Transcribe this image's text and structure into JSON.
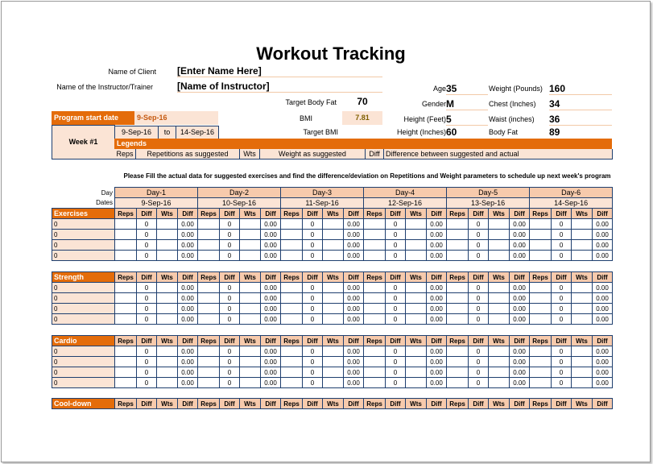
{
  "title": "Workout Tracking",
  "client": {
    "label": "Name of Client",
    "value": "[Enter Name Here]"
  },
  "instructor": {
    "label": "Name of the Instructor/Trainer",
    "value": "[Name of Instructor]"
  },
  "target_body_fat": {
    "label": "Target Body Fat",
    "value": "70"
  },
  "bmi": {
    "label": "BMI",
    "value": "7.81"
  },
  "target_bmi": {
    "label": "Target BMI",
    "value": ""
  },
  "program": {
    "label": "Program start date",
    "value": "9-Sep-16"
  },
  "week": {
    "label": "Week #1",
    "from": "9-Sep-16",
    "to_label": "to",
    "to": "14-Sep-16"
  },
  "legends": {
    "title": "Legends",
    "items": [
      {
        "key": "Reps",
        "text": "Repetitions as suggested"
      },
      {
        "key": "Wts",
        "text": "Weight as suggested"
      },
      {
        "key": "Diff",
        "text": "Difference between suggested and actual"
      }
    ]
  },
  "stats": [
    {
      "label": "Age",
      "value": "35",
      "label2": "Weight (Pounds)",
      "value2": "160"
    },
    {
      "label": "Gender",
      "value": "M",
      "label2": "Chest (Inches)",
      "value2": "34"
    },
    {
      "label": "Height (Feet)",
      "value": "5",
      "label2": "Waist (inches)",
      "value2": "36"
    },
    {
      "label": "Height (Inches)",
      "value": "60",
      "label2": "Body Fat",
      "value2": "89"
    }
  ],
  "instruction": "Please Fill the actual data for suggested exercises and find the difference/deviation on Repetitions and Weight parameters to schedule up next week's program",
  "grid": {
    "day_label": "Day",
    "dates_label": "Dates",
    "days": [
      {
        "day": "Day-1",
        "date": "9-Sep-16"
      },
      {
        "day": "Day-2",
        "date": "10-Sep-16"
      },
      {
        "day": "Day-3",
        "date": "11-Sep-16"
      },
      {
        "day": "Day-4",
        "date": "12-Sep-16"
      },
      {
        "day": "Day-5",
        "date": "13-Sep-16"
      },
      {
        "day": "Day-6",
        "date": "14-Sep-16"
      }
    ],
    "subcols": [
      "Reps",
      "Diff",
      "Wts",
      "Diff"
    ],
    "sections": [
      {
        "name": "Exercises",
        "rows": [
          {
            "label": "0",
            "diff": "0",
            "wdiff": "0.00"
          },
          {
            "label": "0",
            "diff": "0",
            "wdiff": "0.00"
          },
          {
            "label": "0",
            "diff": "0",
            "wdiff": "0.00"
          },
          {
            "label": "0",
            "diff": "0",
            "wdiff": "0.00"
          }
        ]
      },
      {
        "name": "Strength",
        "rows": [
          {
            "label": "0",
            "diff": "0",
            "wdiff": "0.00"
          },
          {
            "label": "0",
            "diff": "0",
            "wdiff": "0.00"
          },
          {
            "label": "0",
            "diff": "0",
            "wdiff": "0.00"
          },
          {
            "label": "0",
            "diff": "0",
            "wdiff": "0.00"
          }
        ]
      },
      {
        "name": "Cardio",
        "rows": [
          {
            "label": "0",
            "diff": "0",
            "wdiff": "0.00"
          },
          {
            "label": "0",
            "diff": "0",
            "wdiff": "0.00"
          },
          {
            "label": "0",
            "diff": "0",
            "wdiff": "0.00"
          },
          {
            "label": "0",
            "diff": "0",
            "wdiff": "0.00"
          }
        ]
      },
      {
        "name": "Cool-down",
        "rows": []
      }
    ]
  },
  "colors": {
    "accent": "#e46c0a",
    "light": "#fbe4d5",
    "header": "#f7caac",
    "border": "#1f3f6f"
  }
}
